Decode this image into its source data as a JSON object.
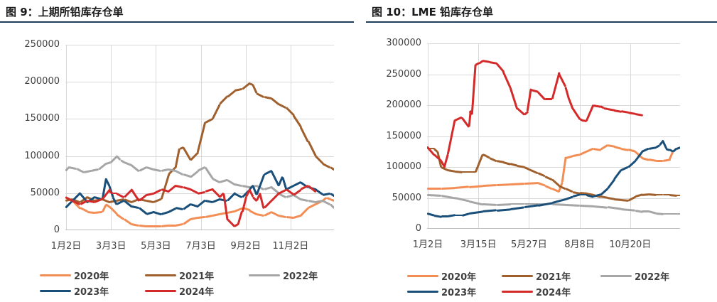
{
  "chart_data": [
    {
      "type": "line",
      "title": "图 9：上期所铅库存仓单",
      "xlabel": "",
      "ylabel": "",
      "xlim": [
        0,
        365
      ],
      "ylim": [
        0,
        250000
      ],
      "yticks": [
        0,
        50000,
        100000,
        150000,
        200000,
        250000
      ],
      "xticks": [
        {
          "x": 1,
          "label": "1月2日"
        },
        {
          "x": 62,
          "label": "3月3日"
        },
        {
          "x": 123,
          "label": "5月3日"
        },
        {
          "x": 184,
          "label": "7月3日"
        },
        {
          "x": 245,
          "label": "9月2日"
        },
        {
          "x": 306,
          "label": "11月2日"
        }
      ],
      "grid": "horizontal and vertical",
      "legend_position": "bottom",
      "series": [
        {
          "name": "2020年",
          "color": "#f28e55",
          "x": [
            0,
            10,
            20,
            30,
            40,
            50,
            55,
            62,
            70,
            80,
            90,
            100,
            110,
            120,
            130,
            140,
            150,
            160,
            170,
            180,
            190,
            200,
            210,
            220,
            230,
            240,
            250,
            260,
            270,
            280,
            290,
            300,
            310,
            320,
            330,
            340,
            350,
            355,
            360,
            365
          ],
          "y": [
            45000,
            40000,
            30000,
            25000,
            24000,
            25000,
            35000,
            30000,
            22000,
            15000,
            8000,
            6000,
            5000,
            5000,
            5000,
            6000,
            6000,
            8000,
            15000,
            17000,
            18000,
            20000,
            22000,
            24000,
            26000,
            30000,
            27000,
            22000,
            20000,
            25000,
            20000,
            18000,
            17000,
            20000,
            30000,
            35000,
            40000,
            44000,
            42000,
            40000
          ]
        },
        {
          "name": "2021年",
          "color": "#a0602e",
          "x": [
            0,
            10,
            20,
            30,
            40,
            50,
            60,
            70,
            80,
            90,
            100,
            110,
            120,
            130,
            140,
            150,
            155,
            160,
            170,
            180,
            190,
            200,
            205,
            210,
            220,
            230,
            240,
            250,
            255,
            260,
            270,
            280,
            290,
            300,
            310,
            320,
            330,
            340,
            350,
            360,
            365
          ],
          "y": [
            40000,
            42000,
            38000,
            45000,
            40000,
            42000,
            38000,
            40000,
            42000,
            38000,
            42000,
            40000,
            38000,
            42000,
            75000,
            85000,
            110000,
            112000,
            95000,
            105000,
            145000,
            150000,
            160000,
            170000,
            180000,
            188000,
            190000,
            198000,
            196000,
            185000,
            180000,
            178000,
            170000,
            165000,
            155000,
            140000,
            120000,
            100000,
            90000,
            85000,
            82000
          ]
        },
        {
          "name": "2022年",
          "color": "#a6a6a6",
          "x": [
            0,
            5,
            15,
            25,
            35,
            45,
            55,
            62,
            70,
            75,
            80,
            90,
            100,
            110,
            120,
            130,
            140,
            150,
            160,
            170,
            180,
            190,
            200,
            210,
            220,
            230,
            240,
            250,
            260,
            270,
            280,
            290,
            300,
            310,
            320,
            330,
            340,
            350,
            360,
            365
          ],
          "y": [
            80000,
            85000,
            83000,
            78000,
            80000,
            82000,
            90000,
            92000,
            100000,
            95000,
            92000,
            88000,
            80000,
            85000,
            82000,
            80000,
            82000,
            80000,
            75000,
            72000,
            80000,
            85000,
            70000,
            65000,
            68000,
            62000,
            60000,
            58000,
            60000,
            55000,
            58000,
            50000,
            45000,
            48000,
            42000,
            40000,
            38000,
            40000,
            35000,
            30000
          ]
        },
        {
          "name": "2023年",
          "color": "#1a4f7a",
          "x": [
            0,
            10,
            20,
            30,
            40,
            50,
            55,
            60,
            65,
            70,
            80,
            90,
            100,
            110,
            120,
            130,
            140,
            150,
            160,
            170,
            180,
            190,
            200,
            210,
            220,
            230,
            240,
            250,
            255,
            260,
            270,
            280,
            290,
            295,
            300,
            310,
            320,
            330,
            340,
            350,
            360,
            365
          ],
          "y": [
            30000,
            40000,
            50000,
            38000,
            45000,
            42000,
            70000,
            60000,
            45000,
            35000,
            40000,
            32000,
            30000,
            22000,
            25000,
            22000,
            25000,
            30000,
            28000,
            35000,
            32000,
            40000,
            38000,
            42000,
            40000,
            50000,
            45000,
            55000,
            60000,
            48000,
            75000,
            80000,
            60000,
            72000,
            55000,
            60000,
            65000,
            58000,
            55000,
            48000,
            50000,
            47000
          ]
        },
        {
          "name": "2024年",
          "color": "#d42a2a",
          "x": [
            0,
            10,
            20,
            30,
            40,
            50,
            60,
            62,
            70,
            80,
            90,
            100,
            110,
            120,
            130,
            140,
            150,
            160,
            170,
            180,
            190,
            200,
            210,
            215,
            220,
            225,
            230,
            235,
            240,
            245,
            250,
            255,
            260,
            265,
            270,
            280,
            290,
            300,
            310,
            320,
            330,
            340
          ],
          "y": [
            45000,
            40000,
            35000,
            40000,
            38000,
            42000,
            55000,
            50000,
            50000,
            45000,
            55000,
            40000,
            48000,
            50000,
            55000,
            52000,
            60000,
            58000,
            55000,
            50000,
            52000,
            55000,
            45000,
            50000,
            15000,
            10000,
            5000,
            8000,
            25000,
            45000,
            55000,
            45000,
            40000,
            50000,
            30000,
            40000,
            50000,
            55000,
            48000,
            55000,
            60000,
            52000
          ]
        }
      ]
    },
    {
      "type": "line",
      "title": "图 10：LME 铅库存仓单",
      "xlabel": "",
      "ylabel": "",
      "xlim": [
        0,
        365
      ],
      "ylim": [
        0,
        300000
      ],
      "yticks": [
        0,
        50000,
        100000,
        150000,
        200000,
        250000,
        300000
      ],
      "xticks": [
        {
          "x": 1,
          "label": "1月2日"
        },
        {
          "x": 74,
          "label": "3月15日"
        },
        {
          "x": 147,
          "label": "5月27日"
        },
        {
          "x": 220,
          "label": "8月8日"
        },
        {
          "x": 293,
          "label": "10月20日"
        }
      ],
      "grid": "horizontal and vertical",
      "legend_position": "bottom",
      "series": [
        {
          "name": "2020年",
          "color": "#f28e55",
          "x": [
            0,
            20,
            40,
            60,
            80,
            100,
            120,
            140,
            160,
            170,
            180,
            190,
            195,
            200,
            210,
            220,
            230,
            240,
            250,
            260,
            270,
            280,
            290,
            300,
            310,
            320,
            330,
            340,
            350,
            355,
            360,
            365
          ],
          "y": [
            65000,
            65000,
            66000,
            68000,
            70000,
            71000,
            72000,
            73000,
            74000,
            70000,
            65000,
            60000,
            75000,
            115000,
            118000,
            120000,
            125000,
            130000,
            128000,
            135000,
            133000,
            130000,
            128000,
            125000,
            115000,
            112000,
            110000,
            110000,
            112000,
            125000,
            130000,
            132000
          ]
        },
        {
          "name": "2021年",
          "color": "#a0602e",
          "x": [
            0,
            10,
            15,
            20,
            30,
            40,
            50,
            70,
            80,
            85,
            90,
            100,
            110,
            120,
            130,
            140,
            150,
            160,
            170,
            180,
            190,
            200,
            210,
            220,
            230,
            240,
            250,
            260,
            270,
            280,
            290,
            300,
            310,
            320,
            330,
            340,
            350,
            360,
            365
          ],
          "y": [
            130000,
            130000,
            125000,
            100000,
            95000,
            93000,
            92000,
            92000,
            120000,
            118000,
            115000,
            110000,
            108000,
            105000,
            102000,
            100000,
            95000,
            90000,
            85000,
            80000,
            70000,
            65000,
            60000,
            58000,
            57000,
            55000,
            52000,
            50000,
            48000,
            47000,
            46000,
            52000,
            55000,
            56000,
            55000,
            55000,
            55000,
            54000,
            54000
          ]
        },
        {
          "name": "2022年",
          "color": "#a6a6a6",
          "x": [
            0,
            20,
            40,
            60,
            80,
            100,
            120,
            140,
            160,
            180,
            200,
            220,
            240,
            260,
            280,
            300,
            310,
            320,
            330,
            340,
            350,
            360,
            365
          ],
          "y": [
            55000,
            54000,
            50000,
            45000,
            40000,
            39000,
            40000,
            40000,
            40000,
            40000,
            39000,
            38000,
            37000,
            35000,
            32000,
            30000,
            28000,
            28000,
            25000,
            24000,
            24000,
            24000,
            24000
          ]
        },
        {
          "name": "2023年",
          "color": "#1a4f7a",
          "x": [
            0,
            10,
            20,
            30,
            40,
            50,
            60,
            80,
            100,
            120,
            140,
            160,
            180,
            200,
            210,
            220,
            230,
            240,
            250,
            260,
            270,
            280,
            290,
            300,
            310,
            320,
            330,
            335,
            340,
            345,
            350,
            355,
            360,
            365
          ],
          "y": [
            25000,
            22000,
            20000,
            20000,
            22000,
            22000,
            25000,
            28000,
            30000,
            32000,
            35000,
            38000,
            42000,
            48000,
            52000,
            55000,
            55000,
            52000,
            55000,
            65000,
            80000,
            95000,
            100000,
            110000,
            125000,
            130000,
            132000,
            135000,
            142000,
            130000,
            128000,
            125000,
            130000,
            132000
          ]
        },
        {
          "name": "2024年",
          "color": "#d42a2a",
          "x": [
            0,
            10,
            20,
            25,
            30,
            40,
            50,
            60,
            62,
            65,
            70,
            75,
            80,
            90,
            100,
            110,
            120,
            130,
            140,
            145,
            150,
            160,
            170,
            180,
            190,
            200,
            205,
            210,
            220,
            225,
            230,
            240,
            250,
            255,
            260,
            270,
            280,
            290,
            300,
            310
          ],
          "y": [
            133000,
            120000,
            110000,
            100000,
            120000,
            175000,
            180000,
            165000,
            190000,
            185000,
            265000,
            268000,
            272000,
            270000,
            268000,
            255000,
            230000,
            195000,
            185000,
            190000,
            225000,
            222000,
            210000,
            210000,
            252000,
            230000,
            210000,
            195000,
            178000,
            175000,
            174000,
            200000,
            198000,
            195000,
            194000,
            192000,
            190000,
            188000,
            186000,
            184000
          ]
        }
      ]
    }
  ]
}
